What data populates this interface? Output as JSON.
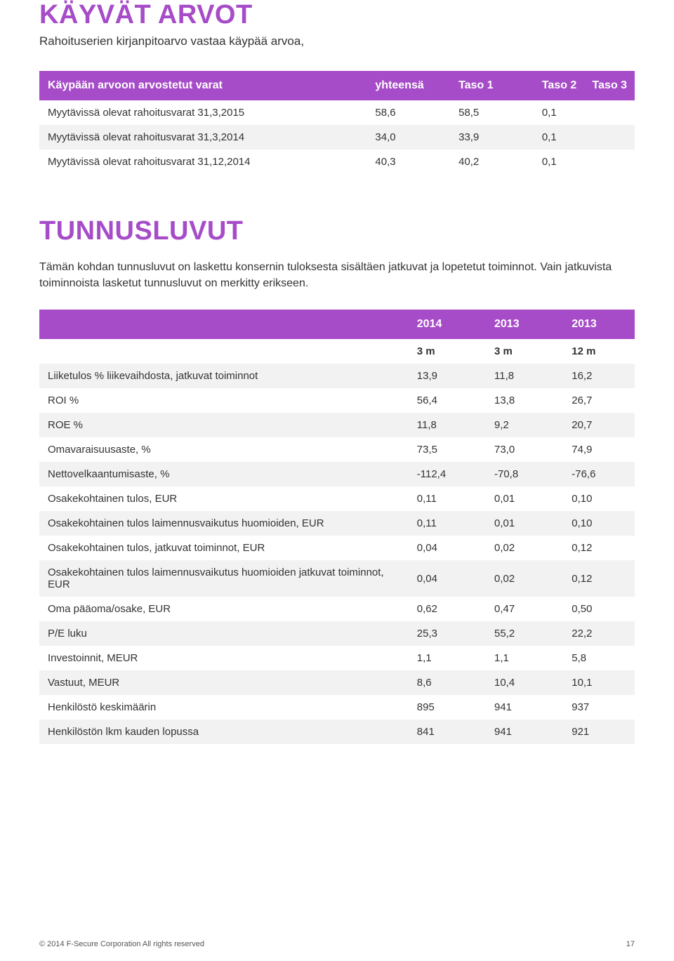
{
  "colors": {
    "heading": "#a64cc8",
    "thead_bg": "#a64cc8",
    "row_odd": "#ffffff",
    "row_even": "#f2f2f2",
    "body_bg": "#ffffff"
  },
  "section1": {
    "title": "KÄYVÄT ARVOT",
    "subtitle": "Rahoituserien kirjanpitoarvo vastaa käypää arvoa,",
    "table": {
      "col_widths": [
        "55%",
        "14%",
        "14%",
        "17%"
      ],
      "headers": [
        "Käypään arvoon arvostetut varat",
        "yhteensä",
        "Taso 1",
        "Taso 2     Taso 3"
      ],
      "rows": [
        {
          "label": "Myytävissä olevat rahoitusvarat 31,3,2015",
          "v": [
            "58,6",
            "58,5",
            "0,1"
          ]
        },
        {
          "label": "Myytävissä olevat rahoitusvarat 31,3,2014",
          "v": [
            "34,0",
            "33,9",
            "0,1"
          ]
        },
        {
          "label": "Myytävissä olevat rahoitusvarat 31,12,2014",
          "v": [
            "40,3",
            "40,2",
            "0,1"
          ]
        }
      ]
    }
  },
  "section2": {
    "title": "TUNNUSLUVUT",
    "body": "Tämän kohdan tunnusluvut on laskettu konsernin tuloksesta sisältäen jatkuvat ja lopetetut toiminnot. Vain jatkuvista toiminnoista lasketut tunnusluvut on merkitty erikseen.",
    "table": {
      "col_widths": [
        "62%",
        "13%",
        "13%",
        "12%"
      ],
      "headers": [
        "",
        "2014",
        "2013",
        "2013"
      ],
      "subheaders": [
        "",
        "3 m",
        "3 m",
        "12 m"
      ],
      "rows": [
        {
          "label": "Liiketulos % liikevaihdosta, jatkuvat toiminnot",
          "v": [
            "13,9",
            "11,8",
            "16,2"
          ]
        },
        {
          "label": "ROI %",
          "v": [
            "56,4",
            "13,8",
            "26,7"
          ]
        },
        {
          "label": "ROE %",
          "v": [
            "11,8",
            "9,2",
            "20,7"
          ]
        },
        {
          "label": "Omavaraisuusaste, %",
          "v": [
            "73,5",
            "73,0",
            "74,9"
          ]
        },
        {
          "label": "Nettovelkaantumisaste, %",
          "v": [
            "-112,4",
            "-70,8",
            "-76,6"
          ]
        },
        {
          "label": "Osakekohtainen tulos, EUR",
          "v": [
            "0,11",
            "0,01",
            "0,10"
          ]
        },
        {
          "label": "Osakekohtainen tulos laimennusvaikutus huomioiden, EUR",
          "v": [
            "0,11",
            "0,01",
            "0,10"
          ]
        },
        {
          "label": "Osakekohtainen tulos, jatkuvat toiminnot, EUR",
          "v": [
            "0,04",
            "0,02",
            "0,12"
          ]
        },
        {
          "label": "Osakekohtainen tulos laimennusvaikutus huomioiden jatkuvat toiminnot, EUR",
          "v": [
            "0,04",
            "0,02",
            "0,12"
          ]
        },
        {
          "label": "Oma pääoma/osake, EUR",
          "v": [
            "0,62",
            "0,47",
            "0,50"
          ]
        },
        {
          "label": "P/E luku",
          "v": [
            "25,3",
            "55,2",
            "22,2"
          ]
        },
        {
          "label": "Investoinnit, MEUR",
          "v": [
            "1,1",
            "1,1",
            "5,8"
          ]
        },
        {
          "label": "Vastuut, MEUR",
          "v": [
            "8,6",
            "10,4",
            "10,1"
          ]
        },
        {
          "label": "Henkilöstö keskimäärin",
          "v": [
            "895",
            "941",
            "937"
          ]
        },
        {
          "label": "Henkilöstön lkm kauden lopussa",
          "v": [
            "841",
            "941",
            "921"
          ]
        }
      ]
    }
  },
  "footer": {
    "copyright": "© 2014 F-Secure Corporation  All rights reserved",
    "page": "17"
  }
}
